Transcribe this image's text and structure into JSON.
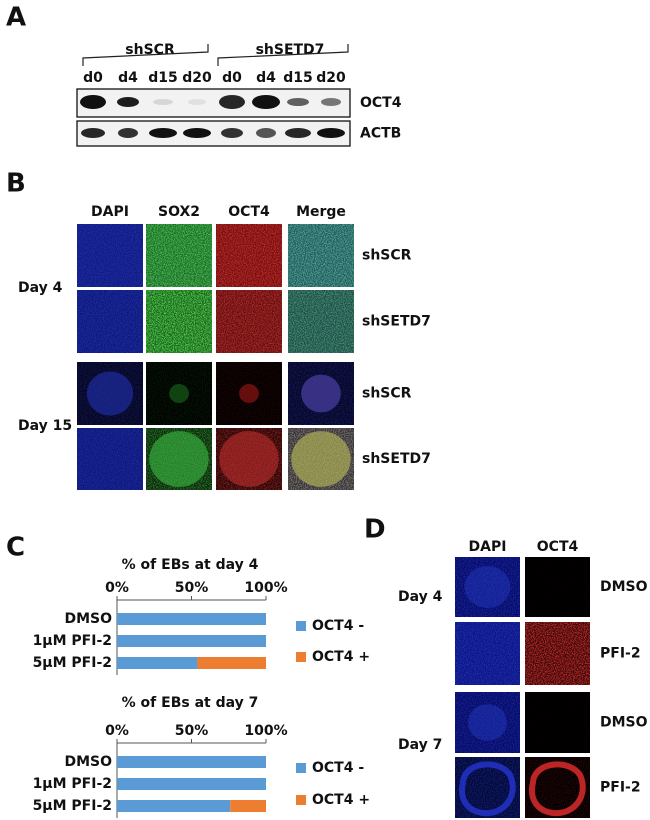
{
  "panel_a": {
    "label": "A",
    "groups": [
      "shSCR",
      "shSETD7"
    ],
    "lanes": [
      "d0",
      "d4",
      "d15",
      "d20",
      "d0",
      "d4",
      "d15",
      "d20"
    ],
    "blots": [
      "OCT4",
      "ACTB"
    ]
  },
  "panel_b": {
    "label": "B",
    "channels": [
      "DAPI",
      "SOX2",
      "OCT4",
      "Merge"
    ],
    "days": [
      "Day 4",
      "Day 15"
    ],
    "rows": [
      "shSCR",
      "shSETD7",
      "shSCR",
      "shSETD7"
    ]
  },
  "panel_c": {
    "label": "C"
  },
  "chart_data": [
    {
      "type": "bar",
      "orientation": "horizontal",
      "stacked": true,
      "title": "% of EBs at day 4",
      "categories": [
        "DMSO",
        "1µM PFI-2",
        "5µM PFI-2"
      ],
      "series": [
        {
          "name": "OCT4 -",
          "color": "#5b9bd5",
          "values": [
            100,
            100,
            54
          ]
        },
        {
          "name": "OCT4 +",
          "color": "#ed7d31",
          "values": [
            0,
            0,
            46
          ]
        }
      ],
      "xlim": [
        0,
        100
      ],
      "xticks": [
        {
          "value": 0,
          "label": "0%"
        },
        {
          "value": 50,
          "label": "50%"
        },
        {
          "value": 100,
          "label": "100%"
        }
      ],
      "legend": "right"
    },
    {
      "type": "bar",
      "orientation": "horizontal",
      "stacked": true,
      "title": "% of EBs at day 7",
      "categories": [
        "DMSO",
        "1µM PFI-2",
        "5µM PFI-2"
      ],
      "series": [
        {
          "name": "OCT4 -",
          "color": "#5b9bd5",
          "values": [
            100,
            100,
            76
          ]
        },
        {
          "name": "OCT4 +",
          "color": "#ed7d31",
          "values": [
            0,
            0,
            24
          ]
        }
      ],
      "xlim": [
        0,
        100
      ],
      "xticks": [
        {
          "value": 0,
          "label": "0%"
        },
        {
          "value": 50,
          "label": "50%"
        },
        {
          "value": 100,
          "label": "100%"
        }
      ],
      "legend": "right"
    }
  ],
  "panel_d": {
    "label": "D",
    "channels": [
      "DAPI",
      "OCT4"
    ],
    "days": [
      "Day 4",
      "Day 7"
    ],
    "rows": [
      "DMSO",
      "PFI-2",
      "DMSO",
      "PFI-2"
    ]
  }
}
